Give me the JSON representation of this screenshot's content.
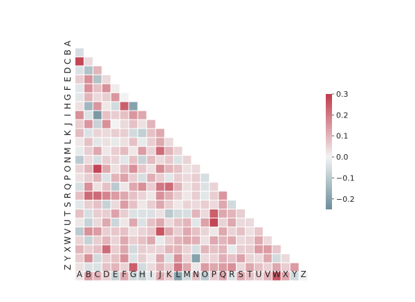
{
  "chart_data": {
    "type": "heatmap",
    "title": "",
    "xlabel": "",
    "ylabel": "",
    "mask": "upper-triangle-including-diagonal",
    "x_categories": [
      "A",
      "B",
      "C",
      "D",
      "E",
      "F",
      "G",
      "H",
      "I",
      "J",
      "K",
      "L",
      "M",
      "N",
      "O",
      "P",
      "Q",
      "R",
      "S",
      "T",
      "U",
      "V",
      "W",
      "X",
      "Y",
      "Z"
    ],
    "y_categories": [
      "A",
      "B",
      "C",
      "D",
      "E",
      "F",
      "G",
      "H",
      "I",
      "J",
      "K",
      "L",
      "M",
      "N",
      "O",
      "P",
      "Q",
      "R",
      "S",
      "T",
      "U",
      "V",
      "W",
      "X",
      "Y",
      "Z"
    ],
    "colorbar": {
      "vmin": -0.25,
      "vmax": 0.3,
      "center": 0.0,
      "ticks": [
        0.3,
        0.2,
        0.1,
        0.0,
        -0.1,
        -0.2
      ],
      "tick_labels": [
        "0.3",
        "0.2",
        "0.1",
        "0.0",
        "−0.1",
        "−0.2"
      ],
      "low_color": "#6b8e9b",
      "mid_color": "#f2f2f2",
      "high_color": "#c13a4b"
    },
    "values": [
      [],
      [
        -0.05
      ],
      [
        0.28,
        0.04
      ],
      [
        -0.04,
        -0.12,
        0.1
      ],
      [
        0.06,
        0.16,
        -0.12,
        0.04
      ],
      [
        -0.03,
        0.16,
        0.08,
        0.16,
        0.01
      ],
      [
        -0.03,
        0.1,
        0.04,
        0.06,
        0.15,
        0.0
      ],
      [
        0.03,
        -0.15,
        0.15,
        0.02,
        -0.06,
        0.24,
        -0.2
      ],
      [
        0.16,
        -0.04,
        -0.22,
        0.08,
        0.06,
        0.08,
        0.15,
        0.12
      ],
      [
        0.06,
        0.15,
        -0.08,
        0.16,
        0.0,
        0.04,
        0.08,
        0.03,
        0.1
      ],
      [
        0.09,
        -0.04,
        0.05,
        0.04,
        0.06,
        0.06,
        -0.06,
        -0.09,
        0.08,
        0.12
      ],
      [
        0.02,
        0.08,
        -0.03,
        0.03,
        -0.02,
        0.03,
        0.08,
        -0.02,
        0.06,
        0.12,
        0.04
      ],
      [
        -0.02,
        0.06,
        0.12,
        0.02,
        0.06,
        0.09,
        0.02,
        0.14,
        0.05,
        0.22,
        0.1,
        0.05
      ],
      [
        -0.1,
        0.04,
        -0.05,
        0.06,
        0.05,
        -0.03,
        0.08,
        -0.08,
        0.09,
        0.04,
        0.07,
        -0.04,
        0.05
      ],
      [
        0.05,
        0.1,
        0.28,
        0.12,
        0.03,
        0.09,
        0.16,
        0.07,
        0.03,
        0.17,
        0.1,
        0.08,
        0.03,
        0.04
      ],
      [
        0.03,
        0.06,
        0.1,
        -0.04,
        0.1,
        0.13,
        0.06,
        -0.05,
        0.11,
        0.06,
        -0.03,
        0.06,
        0.04,
        0.06,
        -0.05
      ],
      [
        -0.05,
        0.16,
        0.03,
        0.08,
        -0.1,
        0.02,
        0.12,
        0.16,
        0.06,
        0.2,
        0.22,
        0.1,
        0.03,
        0.06,
        -0.04,
        0.05
      ],
      [
        0.08,
        0.22,
        0.22,
        0.18,
        0.14,
        0.12,
        0.08,
        0.05,
        0.02,
        0.16,
        0.11,
        0.06,
        0.02,
        0.06,
        -0.03,
        0.06,
        0.15
      ],
      [
        -0.03,
        0.06,
        0.08,
        -0.08,
        0.04,
        0.14,
        0.08,
        0.02,
        0.06,
        0.12,
        0.06,
        0.02,
        0.05,
        0.04,
        0.06,
        0.04,
        0.12,
        -0.06
      ],
      [
        0.08,
        -0.05,
        0.06,
        0.06,
        0.13,
        0.06,
        -0.04,
        -0.04,
        -0.04,
        0.03,
        -0.1,
        -0.06,
        -0.05,
        0.1,
        0.04,
        0.24,
        0.12,
        0.1,
        0.06
      ],
      [
        0.02,
        -0.08,
        0.04,
        0.12,
        -0.07,
        0.02,
        0.12,
        -0.04,
        0.08,
        0.12,
        0.04,
        0.08,
        0.1,
        -0.03,
        0.13,
        0.28,
        0.05,
        0.12,
        0.04,
        0.04
      ],
      [
        -0.1,
        0.16,
        0.14,
        0.06,
        0.07,
        0.08,
        0.03,
        0.05,
        0.07,
        0.26,
        0.12,
        0.06,
        0.12,
        0.08,
        0.05,
        0.02,
        0.12,
        0.05,
        0.08,
        0.03,
        0.07
      ],
      [
        0.05,
        -0.08,
        0.06,
        0.1,
        0.05,
        0.12,
        0.06,
        0.08,
        0.12,
        -0.02,
        0.06,
        0.1,
        0.12,
        0.11,
        0.03,
        0.12,
        0.1,
        0.12,
        0.04,
        0.05,
        0.12,
        0.04
      ],
      [
        0.1,
        0.06,
        0.08,
        0.22,
        0.06,
        0.12,
        -0.06,
        0.06,
        0.05,
        0.05,
        0.1,
        0.1,
        0.05,
        -0.05,
        0.1,
        0.08,
        0.1,
        -0.02,
        0.06,
        0.06,
        0.14,
        0.14,
        0.07
      ],
      [
        0.06,
        0.16,
        -0.06,
        0.06,
        0.08,
        0.16,
        -0.04,
        0.06,
        0.02,
        0.12,
        -0.04,
        0.16,
        0.05,
        -0.2,
        0.04,
        0.05,
        0.11,
        0.08,
        0.13,
        0.05,
        0.04,
        0.12,
        -0.06,
        0.04
      ],
      [
        0.03,
        -0.04,
        -0.04,
        0.08,
        0.1,
        0.05,
        0.24,
        -0.06,
        0.04,
        0.1,
        0.06,
        0.2,
        0.12,
        0.02,
        0.14,
        0.12,
        0.14,
        0.16,
        0.04,
        0.12,
        0.08,
        0.05,
        0.12,
        0.06,
        0.14
      ],
      [
        0.02,
        0.14,
        0.1,
        0.05,
        -0.08,
        0.12,
        -0.06,
        -0.08,
        -0.03,
        0.12,
        0.06,
        -0.2,
        -0.06,
        0.08,
        -0.1,
        0.06,
        0.12,
        -0.04,
        0.12,
        0.08,
        0.05,
        0.1,
        0.26,
        0.12,
        -0.06,
        0.0
      ]
    ]
  }
}
